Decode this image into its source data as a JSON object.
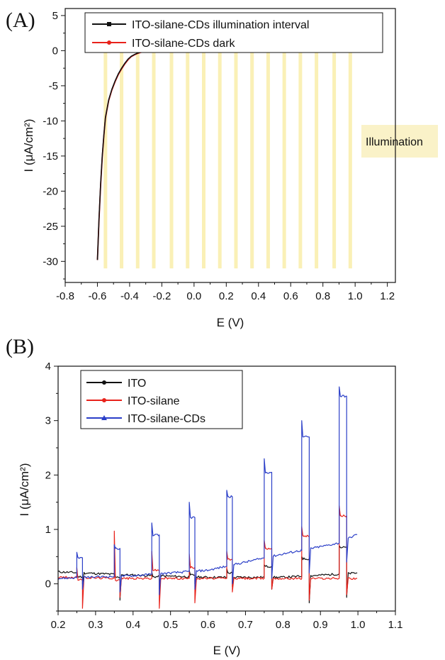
{
  "chart_data": [
    {
      "panel": "(A)",
      "type": "line",
      "title": "",
      "xlabel": "E (V)",
      "ylabel": "I (μA/cm²)",
      "xlim": [
        -0.8,
        1.25
      ],
      "ylim": [
        -33,
        6
      ],
      "x_ticks": [
        "-0.8",
        "-0.6",
        "-0.4",
        "-0.2",
        "0.0",
        "0.2",
        "0.4",
        "0.6",
        "0.8",
        "1.0",
        "1.2"
      ],
      "y_ticks": [
        "5",
        "0",
        "-5",
        "-10",
        "-15",
        "-20",
        "-25",
        "-30"
      ],
      "legend_position": "top",
      "annotation": "Illumination",
      "illumination_bands_center_v": [
        -0.55,
        -0.45,
        -0.35,
        -0.25,
        -0.14,
        -0.04,
        0.06,
        0.16,
        0.26,
        0.36,
        0.46,
        0.56,
        0.66,
        0.76,
        0.87,
        0.97
      ],
      "series": [
        {
          "name": "ITO-silane-CDs illumination interval",
          "color": "#111111",
          "marker": "square",
          "pulse_interval": [
            0.35,
            0.98
          ],
          "x": [
            -0.6,
            -0.59,
            -0.58,
            -0.57,
            -0.56,
            -0.55,
            -0.53,
            -0.51,
            -0.49,
            -0.47,
            -0.45,
            -0.43,
            -0.41,
            -0.39,
            -0.37,
            -0.35,
            -0.33,
            -0.31,
            -0.29,
            -0.25,
            -0.2,
            -0.1,
            0.0,
            0.2,
            0.4,
            0.6,
            0.8,
            1.0
          ],
          "y": [
            -29.8,
            -24,
            -19,
            -15,
            -12,
            -9.5,
            -7,
            -5.5,
            -4.3,
            -3.3,
            -2.5,
            -1.8,
            -1.2,
            -0.8,
            -0.55,
            -0.35,
            -0.2,
            -0.1,
            -0.05,
            0,
            0.05,
            0.08,
            0.1,
            0.18,
            0.3,
            0.45,
            0.65,
            0.9
          ],
          "pulse_heights": [
            0.4,
            0.5,
            0.6,
            0.8,
            1.0,
            1.3,
            1.6,
            2.0
          ]
        },
        {
          "name": "ITO-silane-CDs dark",
          "color": "#e8221b",
          "marker": "dot",
          "x": [
            -0.6,
            -0.59,
            -0.58,
            -0.57,
            -0.56,
            -0.55,
            -0.53,
            -0.51,
            -0.49,
            -0.47,
            -0.45,
            -0.43,
            -0.41,
            -0.39,
            -0.37,
            -0.35,
            -0.33,
            -0.31,
            -0.29,
            -0.25,
            -0.2,
            -0.1,
            0.0,
            0.2,
            0.4,
            0.6,
            0.8,
            1.0
          ],
          "y": [
            -29.8,
            -24.2,
            -19.2,
            -15.2,
            -12.1,
            -9.6,
            -7.1,
            -5.6,
            -4.4,
            -3.4,
            -2.6,
            -1.9,
            -1.3,
            -0.85,
            -0.6,
            -0.4,
            -0.25,
            -0.12,
            -0.07,
            -0.02,
            0.02,
            0.05,
            0.08,
            0.15,
            0.25,
            0.4,
            0.55,
            0.75
          ]
        }
      ]
    },
    {
      "panel": "(B)",
      "type": "line",
      "title": "",
      "xlabel": "E (V)",
      "ylabel": "I (μA/cm²)",
      "xlim": [
        0.2,
        1.1
      ],
      "ylim": [
        -0.5,
        4
      ],
      "x_ticks": [
        "0.2",
        "0.3",
        "0.4",
        "0.5",
        "0.6",
        "0.7",
        "0.8",
        "0.9",
        "1.0",
        "1.1"
      ],
      "y_ticks": [
        "4",
        "3",
        "2",
        "1",
        "0"
      ],
      "legend_position": "top-left",
      "light_on_v": [
        0.25,
        0.35,
        0.45,
        0.55,
        0.65,
        0.75,
        0.85,
        0.95
      ],
      "light_off_v": [
        0.265,
        0.365,
        0.47,
        0.565,
        0.665,
        0.77,
        0.87,
        0.97
      ],
      "series": [
        {
          "name": "ITO",
          "color": "#111111",
          "baseline": [
            [
              0.2,
              0.22
            ],
            [
              0.4,
              0.16
            ],
            [
              0.6,
              0.12
            ],
            [
              0.8,
              0.12
            ],
            [
              1.0,
              0.2
            ]
          ],
          "plateau": [
            0.13,
            0.12,
            0.13,
            0.16,
            0.2,
            0.32,
            0.46,
            0.67
          ],
          "spike": [
            0.2,
            0.2,
            0.22,
            0.25,
            0.28,
            0.35,
            0.5,
            0.7
          ],
          "dip": [
            0.0,
            -0.3,
            -0.1,
            0.0,
            -0.05,
            -0.1,
            -0.35,
            -0.25
          ]
        },
        {
          "name": "ITO-silane",
          "color": "#e8221b",
          "baseline": [
            [
              0.2,
              0.12
            ],
            [
              0.4,
              0.1
            ],
            [
              0.6,
              0.1
            ],
            [
              0.8,
              0.1
            ],
            [
              1.0,
              0.1
            ]
          ],
          "plateau": [
            0.08,
            0.07,
            0.25,
            0.3,
            0.45,
            0.65,
            0.88,
            1.25
          ],
          "spike": [
            0.3,
            0.97,
            0.6,
            0.55,
            0.6,
            0.8,
            1.05,
            1.43
          ],
          "dip": [
            -0.45,
            -0.25,
            -0.45,
            -0.35,
            -0.15,
            -0.1,
            -0.3,
            -0.2
          ]
        },
        {
          "name": "ITO-silane-CDs",
          "color": "#2b3fc8",
          "baseline": [
            [
              0.2,
              0.1
            ],
            [
              0.4,
              0.15
            ],
            [
              0.6,
              0.25
            ],
            [
              0.8,
              0.55
            ],
            [
              0.95,
              0.75
            ],
            [
              1.0,
              0.92
            ]
          ],
          "plateau": [
            0.48,
            0.65,
            0.9,
            1.22,
            1.6,
            2.05,
            2.7,
            3.45
          ],
          "spike": [
            0.58,
            0.72,
            1.12,
            1.5,
            1.72,
            2.3,
            3.0,
            3.62
          ],
          "dip": [
            -0.1,
            -0.15,
            -0.2,
            -0.1,
            0.0,
            0.1,
            0.2,
            0.4
          ]
        }
      ]
    }
  ]
}
